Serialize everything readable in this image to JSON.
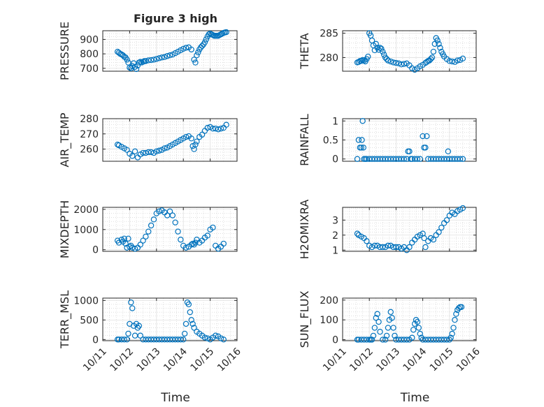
{
  "figure": {
    "title": "Figure 3 high",
    "xlabel": "Time"
  },
  "chart_data": [
    {
      "type": "scatter",
      "panel": "pressure",
      "title": "Figure 3 high",
      "ylabel": "PRESSURE",
      "xlabel": "",
      "xlim": [
        0,
        5
      ],
      "ylim": [
        680,
        960
      ],
      "yticks": [
        700,
        800,
        900
      ],
      "xticklabels": [
        "10/11",
        "10/12",
        "10/13",
        "10/14",
        "10/15",
        "10/16"
      ],
      "x": [
        0.55,
        0.6,
        0.65,
        0.7,
        0.75,
        0.8,
        0.85,
        0.9,
        0.95,
        1.0,
        1.05,
        1.1,
        1.15,
        1.2,
        1.25,
        1.3,
        1.35,
        1.4,
        1.45,
        1.5,
        1.55,
        1.6,
        1.7,
        1.8,
        1.9,
        2.0,
        2.1,
        2.2,
        2.3,
        2.4,
        2.5,
        2.6,
        2.7,
        2.8,
        2.9,
        3.0,
        3.1,
        3.2,
        3.3,
        3.4,
        3.45,
        3.5,
        3.55,
        3.6,
        3.65,
        3.7,
        3.75,
        3.8,
        3.85,
        3.9,
        3.95,
        4.0,
        4.05,
        4.1,
        4.15,
        4.2,
        4.25,
        4.3,
        4.35,
        4.4,
        4.45,
        4.5,
        4.55,
        4.6
      ],
      "y": [
        815,
        808,
        800,
        796,
        790,
        780,
        775,
        760,
        740,
        705,
        700,
        715,
        735,
        710,
        695,
        720,
        740,
        745,
        740,
        745,
        750,
        750,
        755,
        757,
        760,
        765,
        770,
        775,
        778,
        785,
        790,
        795,
        805,
        815,
        825,
        835,
        842,
        845,
        830,
        760,
        740,
        790,
        810,
        830,
        845,
        855,
        865,
        880,
        900,
        920,
        935,
        940,
        935,
        930,
        925,
        925,
        925,
        925,
        930,
        935,
        940,
        945,
        948,
        950
      ]
    },
    {
      "type": "scatter",
      "panel": "theta",
      "ylabel": "THETA",
      "xlabel": "",
      "xlim": [
        0,
        5
      ],
      "ylim": [
        277.2,
        285.5
      ],
      "yticks": [
        280,
        285
      ],
      "xticklabels": [
        "10/11",
        "10/12",
        "10/13",
        "10/14",
        "10/15",
        "10/16"
      ],
      "x": [
        0.55,
        0.6,
        0.65,
        0.7,
        0.75,
        0.8,
        0.85,
        0.9,
        0.95,
        1.0,
        1.05,
        1.1,
        1.15,
        1.2,
        1.25,
        1.3,
        1.35,
        1.4,
        1.45,
        1.5,
        1.55,
        1.6,
        1.65,
        1.7,
        1.8,
        1.9,
        2.0,
        2.1,
        2.2,
        2.3,
        2.4,
        2.5,
        2.6,
        2.7,
        2.8,
        2.9,
        3.0,
        3.1,
        3.15,
        3.2,
        3.25,
        3.3,
        3.35,
        3.4,
        3.45,
        3.5,
        3.55,
        3.6,
        3.65,
        3.7,
        3.75,
        3.8,
        3.9,
        4.0,
        4.1,
        4.2,
        4.3,
        4.4,
        4.5
      ],
      "y": [
        279,
        279.1,
        279.3,
        279.3,
        279.5,
        279.4,
        279.2,
        279.7,
        280.2,
        285,
        284.5,
        283.5,
        282.5,
        281.5,
        282.8,
        282.0,
        281.6,
        282.0,
        281.8,
        281.2,
        280.6,
        280.0,
        279.7,
        279.4,
        279.2,
        279.0,
        278.9,
        278.8,
        278.6,
        278.7,
        278.8,
        278.4,
        277.8,
        277.5,
        277.8,
        278.2,
        278.5,
        278.9,
        279.1,
        279.3,
        279.4,
        279.7,
        280.0,
        281.2,
        282.8,
        284.0,
        283.5,
        282.8,
        282.0,
        281.2,
        280.7,
        280.2,
        279.7,
        279.3,
        279.2,
        279.1,
        279.4,
        279.5,
        279.8
      ]
    },
    {
      "type": "scatter",
      "panel": "air_temp",
      "ylabel": "AIR_TEMP",
      "xlabel": "",
      "xlim": [
        0,
        5
      ],
      "ylim": [
        252,
        280
      ],
      "yticks": [
        260,
        270,
        280
      ],
      "xticklabels": [
        "10/11",
        "10/12",
        "10/13",
        "10/14",
        "10/15",
        "10/16"
      ],
      "x": [
        0.55,
        0.6,
        0.7,
        0.8,
        0.9,
        1.0,
        1.1,
        1.2,
        1.3,
        1.4,
        1.5,
        1.6,
        1.7,
        1.8,
        1.9,
        2.0,
        2.1,
        2.2,
        2.3,
        2.4,
        2.5,
        2.6,
        2.7,
        2.8,
        2.9,
        3.0,
        3.1,
        3.2,
        3.3,
        3.35,
        3.4,
        3.45,
        3.5,
        3.6,
        3.7,
        3.8,
        3.9,
        4.0,
        4.1,
        4.2,
        4.3,
        4.4,
        4.5,
        4.6
      ],
      "y": [
        263,
        262.5,
        261.5,
        260.5,
        259.5,
        257,
        255.5,
        258.5,
        254.5,
        256.5,
        257.5,
        257.5,
        258,
        258,
        257.5,
        258.5,
        259,
        259.5,
        260.5,
        261,
        262,
        263,
        264,
        265,
        266,
        267,
        268,
        268.5,
        267,
        262,
        260,
        263,
        265,
        268,
        269.5,
        272,
        274,
        274.5,
        273.5,
        273.5,
        273,
        273.5,
        274,
        276
      ]
    },
    {
      "type": "scatter",
      "panel": "rainfall",
      "ylabel": "RAINFALL",
      "xlabel": "",
      "xlim": [
        0,
        5
      ],
      "ylim": [
        -0.06,
        1.06
      ],
      "yticks": [
        0,
        0.5,
        1
      ],
      "xticklabels": [
        "10/11",
        "10/12",
        "10/13",
        "10/14",
        "10/15",
        "10/16"
      ],
      "x": [
        0.55,
        0.6,
        0.65,
        0.7,
        0.72,
        0.75,
        0.78,
        0.8,
        0.85,
        0.9,
        1.0,
        1.1,
        1.2,
        1.3,
        1.4,
        1.5,
        1.6,
        1.7,
        1.8,
        1.9,
        2.0,
        2.1,
        2.2,
        2.3,
        2.4,
        2.45,
        2.5,
        2.55,
        2.6,
        2.7,
        2.8,
        2.9,
        3.0,
        3.05,
        3.1,
        3.15,
        3.2,
        3.3,
        3.4,
        3.5,
        3.6,
        3.7,
        3.8,
        3.9,
        3.95,
        4.0,
        4.1,
        4.2,
        4.3,
        4.4,
        4.5
      ],
      "y": [
        0,
        0.5,
        0.3,
        0.3,
        0.5,
        1.0,
        0.3,
        0,
        0,
        0,
        0,
        0,
        0,
        0,
        0,
        0,
        0,
        0,
        0,
        0,
        0,
        0,
        0,
        0,
        0,
        0.2,
        0.2,
        0,
        0,
        0,
        0,
        0,
        0.6,
        0.3,
        0.3,
        0.6,
        0,
        0,
        0,
        0,
        0,
        0,
        0,
        0,
        0.2,
        0,
        0,
        0,
        0,
        0,
        0
      ]
    },
    {
      "type": "scatter",
      "panel": "mixdepth",
      "ylabel": "MIXDEPTH",
      "xlabel": "",
      "xlim": [
        0,
        5
      ],
      "ylim": [
        -80,
        2100
      ],
      "yticks": [
        0,
        1000,
        2000
      ],
      "xticklabels": [
        "10/11",
        "10/12",
        "10/13",
        "10/14",
        "10/15",
        "10/16"
      ],
      "x": [
        0.55,
        0.6,
        0.7,
        0.75,
        0.8,
        0.85,
        0.9,
        0.95,
        1.0,
        1.05,
        1.1,
        1.2,
        1.3,
        1.4,
        1.5,
        1.6,
        1.7,
        1.8,
        1.9,
        2.0,
        2.1,
        2.2,
        2.3,
        2.4,
        2.5,
        2.6,
        2.7,
        2.8,
        2.9,
        3.0,
        3.1,
        3.2,
        3.3,
        3.35,
        3.4,
        3.45,
        3.5,
        3.6,
        3.7,
        3.8,
        3.9,
        4.0,
        4.1,
        4.2,
        4.3,
        4.4,
        4.5
      ],
      "y": [
        450,
        350,
        500,
        400,
        550,
        300,
        100,
        550,
        150,
        200,
        100,
        50,
        100,
        250,
        450,
        650,
        900,
        1200,
        1500,
        1800,
        1900,
        1950,
        1850,
        1700,
        1900,
        1700,
        1350,
        900,
        500,
        200,
        100,
        150,
        250,
        300,
        250,
        350,
        500,
        350,
        450,
        600,
        700,
        1000,
        1100,
        200,
        50,
        150,
        300
      ]
    },
    {
      "type": "scatter",
      "panel": "h2omixra",
      "ylabel": "H2OMIXRA",
      "xlabel": "",
      "xlim": [
        0,
        5
      ],
      "ylim": [
        0.92,
        3.85
      ],
      "yticks": [
        1,
        2,
        3
      ],
      "xticklabels": [
        "10/11",
        "10/12",
        "10/13",
        "10/14",
        "10/15",
        "10/16"
      ],
      "x": [
        0.55,
        0.6,
        0.7,
        0.8,
        0.9,
        1.0,
        1.1,
        1.2,
        1.3,
        1.4,
        1.5,
        1.6,
        1.7,
        1.8,
        1.9,
        2.0,
        2.1,
        2.2,
        2.3,
        2.4,
        2.5,
        2.6,
        2.7,
        2.8,
        2.9,
        3.0,
        3.05,
        3.1,
        3.2,
        3.3,
        3.4,
        3.5,
        3.6,
        3.7,
        3.8,
        3.9,
        4.0,
        4.1,
        4.2,
        4.3,
        4.4,
        4.5
      ],
      "y": [
        2.1,
        2.0,
        1.9,
        1.8,
        1.6,
        1.3,
        1.2,
        1.3,
        1.3,
        1.2,
        1.2,
        1.2,
        1.3,
        1.3,
        1.2,
        1.2,
        1.2,
        1.1,
        1.2,
        1.0,
        1.2,
        1.5,
        1.7,
        1.9,
        2.0,
        2.1,
        1.8,
        1.2,
        1.6,
        1.8,
        1.7,
        2.0,
        2.2,
        2.5,
        2.8,
        3.0,
        3.3,
        3.5,
        3.4,
        3.6,
        3.7,
        3.8
      ]
    },
    {
      "type": "scatter",
      "panel": "terr_msl",
      "ylabel": "TERR_MSL",
      "xlabel": "Time",
      "xlim": [
        0,
        5
      ],
      "ylim": [
        -30,
        1060
      ],
      "yticks": [
        0,
        500,
        1000
      ],
      "xticklabels": [
        "10/11",
        "10/12",
        "10/13",
        "10/14",
        "10/15",
        "10/16"
      ],
      "x": [
        0.55,
        0.6,
        0.7,
        0.8,
        0.9,
        0.95,
        1.0,
        1.05,
        1.1,
        1.15,
        1.2,
        1.25,
        1.3,
        1.35,
        1.4,
        1.5,
        1.6,
        1.7,
        1.8,
        1.9,
        2.0,
        2.1,
        2.2,
        2.3,
        2.4,
        2.5,
        2.6,
        2.7,
        2.8,
        2.9,
        3.0,
        3.05,
        3.1,
        3.15,
        3.2,
        3.25,
        3.3,
        3.35,
        3.4,
        3.5,
        3.6,
        3.7,
        3.8,
        3.9,
        4.0,
        4.1,
        4.2,
        4.3,
        4.4,
        4.5
      ],
      "y": [
        0,
        0,
        0,
        0,
        0,
        150,
        400,
        950,
        800,
        350,
        100,
        400,
        300,
        350,
        100,
        0,
        0,
        0,
        0,
        0,
        0,
        0,
        0,
        0,
        0,
        0,
        0,
        0,
        0,
        0,
        0,
        150,
        400,
        950,
        900,
        700,
        500,
        400,
        300,
        200,
        150,
        100,
        50,
        30,
        0,
        50,
        100,
        80,
        30,
        0
      ]
    },
    {
      "type": "scatter",
      "panel": "sun_flux",
      "ylabel": "SUN_FLUX",
      "xlabel": "Time",
      "xlim": [
        0,
        5
      ],
      "ylim": [
        -5,
        210
      ],
      "yticks": [
        0,
        100,
        200
      ],
      "xticklabels": [
        "10/11",
        "10/12",
        "10/13",
        "10/14",
        "10/15",
        "10/16"
      ],
      "x": [
        0.55,
        0.6,
        0.7,
        0.8,
        0.9,
        1.0,
        1.05,
        1.1,
        1.15,
        1.2,
        1.25,
        1.3,
        1.35,
        1.4,
        1.5,
        1.6,
        1.65,
        1.7,
        1.75,
        1.8,
        1.85,
        1.9,
        1.95,
        2.0,
        2.1,
        2.2,
        2.3,
        2.4,
        2.5,
        2.6,
        2.65,
        2.7,
        2.75,
        2.8,
        2.85,
        2.9,
        2.95,
        3.0,
        3.1,
        3.2,
        3.3,
        3.4,
        3.5,
        3.6,
        3.7,
        3.8,
        3.9,
        4.0,
        4.05,
        4.1,
        4.15,
        4.2,
        4.25,
        4.3,
        4.35,
        4.4,
        4.45
      ],
      "y": [
        0,
        0,
        0,
        0,
        0,
        0,
        0,
        0,
        20,
        60,
        110,
        130,
        90,
        40,
        0,
        0,
        20,
        60,
        100,
        140,
        110,
        60,
        20,
        0,
        0,
        0,
        0,
        0,
        0,
        10,
        50,
        80,
        100,
        90,
        60,
        30,
        10,
        0,
        0,
        0,
        0,
        0,
        0,
        0,
        0,
        0,
        0,
        0,
        10,
        30,
        60,
        100,
        130,
        150,
        160,
        165,
        165
      ]
    }
  ]
}
